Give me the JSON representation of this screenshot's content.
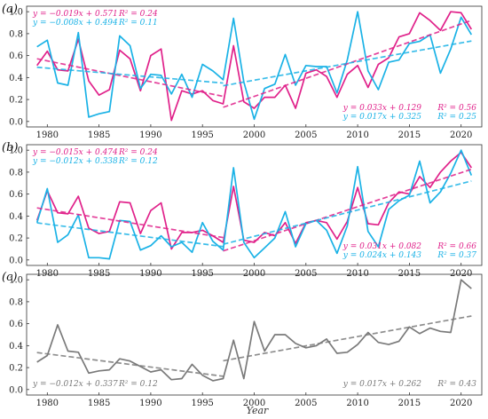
{
  "figure": {
    "xlabel": "Year"
  },
  "chart_data": [
    {
      "type": "line",
      "panel_label": "(a)",
      "xlim": [
        1978,
        2022
      ],
      "ylim": [
        -0.05,
        1.05
      ],
      "x_ticks": [
        1980,
        1985,
        1990,
        1995,
        2000,
        2005,
        2010,
        2015,
        2020
      ],
      "y_ticks": [
        "0.0",
        "0.2",
        "0.4",
        "0.6",
        "0.8",
        "1.0"
      ],
      "x": [
        1979,
        1980,
        1981,
        1982,
        1983,
        1984,
        1985,
        1986,
        1987,
        1988,
        1989,
        1990,
        1991,
        1992,
        1993,
        1994,
        1995,
        1996,
        1997,
        1998,
        1999,
        2000,
        2001,
        2002,
        2003,
        2004,
        2005,
        2006,
        2007,
        2008,
        2009,
        2010,
        2011,
        2012,
        2013,
        2014,
        2015,
        2016,
        2017,
        2018,
        2019,
        2020,
        2021
      ],
      "series": [
        {
          "color": "#e0218a",
          "values": [
            0.51,
            0.64,
            0.47,
            0.46,
            0.75,
            0.37,
            0.24,
            0.29,
            0.65,
            0.57,
            0.28,
            0.6,
            0.66,
            0.01,
            0.28,
            0.25,
            0.28,
            0.19,
            0.16,
            0.69,
            0.18,
            0.12,
            0.22,
            0.22,
            0.33,
            0.12,
            0.44,
            0.47,
            0.41,
            0.22,
            0.43,
            0.51,
            0.31,
            0.52,
            0.58,
            0.77,
            0.8,
            0.99,
            0.92,
            0.83,
            1.0,
            0.99,
            0.84
          ]
        },
        {
          "color": "#1ab2e6",
          "values": [
            0.68,
            0.74,
            0.35,
            0.33,
            0.81,
            0.04,
            0.07,
            0.09,
            0.78,
            0.69,
            0.3,
            0.43,
            0.42,
            0.25,
            0.43,
            0.22,
            0.52,
            0.46,
            0.38,
            0.94,
            0.36,
            0.02,
            0.3,
            0.34,
            0.61,
            0.33,
            0.51,
            0.5,
            0.5,
            0.26,
            0.56,
            1.0,
            0.46,
            0.29,
            0.54,
            0.56,
            0.71,
            0.73,
            0.79,
            0.44,
            0.66,
            0.95,
            0.79
          ]
        }
      ],
      "trends": [
        {
          "x_range": [
            1979,
            1997
          ],
          "series": 0,
          "slope": -0.019,
          "intercept": 0.571,
          "x0": 1979
        },
        {
          "x_range": [
            1979,
            1997
          ],
          "series": 1,
          "slope": -0.008,
          "intercept": 0.494,
          "x0": 1979
        },
        {
          "x_range": [
            1997,
            2021
          ],
          "series": 0,
          "slope": 0.033,
          "intercept": 0.129,
          "x0": 1997
        },
        {
          "x_range": [
            1997,
            2021
          ],
          "series": 1,
          "slope": 0.017,
          "intercept": 0.325,
          "x0": 1997
        }
      ],
      "annotations": [
        {
          "side": "left",
          "row": 0,
          "series": 0,
          "eq": "y = −0.019x + 0.571",
          "r2": "R² = 0.24"
        },
        {
          "side": "left",
          "row": 1,
          "series": 1,
          "eq": "y = −0.008x + 0.494",
          "r2": "R² = 0.11"
        },
        {
          "side": "right",
          "row": 0,
          "series": 0,
          "eq": "y = 0.033x + 0.129",
          "r2": "R² = 0.56"
        },
        {
          "side": "right",
          "row": 1,
          "series": 1,
          "eq": "y = 0.017x + 0.325",
          "r2": "R² = 0.25"
        }
      ]
    },
    {
      "type": "line",
      "panel_label": "(b)",
      "xlim": [
        1978,
        2022
      ],
      "ylim": [
        -0.05,
        1.05
      ],
      "x_ticks": [
        1980,
        1985,
        1990,
        1995,
        2000,
        2005,
        2010,
        2015,
        2020
      ],
      "y_ticks": [
        "0.0",
        "0.2",
        "0.4",
        "0.6",
        "0.8",
        "1.0"
      ],
      "x": [
        1979,
        1980,
        1981,
        1982,
        1983,
        1984,
        1985,
        1986,
        1987,
        1988,
        1989,
        1990,
        1991,
        1992,
        1993,
        1994,
        1995,
        1996,
        1997,
        1998,
        1999,
        2000,
        2001,
        2002,
        2003,
        2004,
        2005,
        2006,
        2007,
        2008,
        2009,
        2010,
        2011,
        2012,
        2013,
        2014,
        2015,
        2016,
        2017,
        2018,
        2019,
        2020,
        2021
      ],
      "series": [
        {
          "color": "#e0218a",
          "values": [
            0.36,
            0.63,
            0.43,
            0.42,
            0.58,
            0.29,
            0.24,
            0.26,
            0.53,
            0.52,
            0.24,
            0.45,
            0.52,
            0.1,
            0.25,
            0.25,
            0.27,
            0.22,
            0.16,
            0.67,
            0.18,
            0.16,
            0.25,
            0.22,
            0.34,
            0.15,
            0.34,
            0.36,
            0.34,
            0.19,
            0.35,
            0.66,
            0.33,
            0.32,
            0.52,
            0.62,
            0.6,
            0.76,
            0.66,
            0.8,
            0.9,
            0.98,
            0.84
          ]
        },
        {
          "color": "#1ab2e6",
          "values": [
            0.34,
            0.65,
            0.16,
            0.23,
            0.41,
            0.02,
            0.02,
            0.01,
            0.36,
            0.35,
            0.09,
            0.13,
            0.22,
            0.12,
            0.16,
            0.07,
            0.34,
            0.17,
            0.09,
            0.84,
            0.16,
            0.02,
            0.11,
            0.2,
            0.44,
            0.12,
            0.33,
            0.36,
            0.27,
            0.06,
            0.31,
            0.85,
            0.26,
            0.12,
            0.46,
            0.54,
            0.59,
            0.9,
            0.52,
            0.62,
            0.79,
            1.0,
            0.77
          ]
        }
      ],
      "trends": [
        {
          "x_range": [
            1979,
            1997
          ],
          "series": 0,
          "slope": -0.015,
          "intercept": 0.474,
          "x0": 1979
        },
        {
          "x_range": [
            1979,
            1997
          ],
          "series": 1,
          "slope": -0.012,
          "intercept": 0.338,
          "x0": 1979
        },
        {
          "x_range": [
            1997,
            2021
          ],
          "series": 0,
          "slope": 0.031,
          "intercept": 0.082,
          "x0": 1997
        },
        {
          "x_range": [
            1997,
            2021
          ],
          "series": 1,
          "slope": 0.024,
          "intercept": 0.143,
          "x0": 1997
        }
      ],
      "annotations": [
        {
          "side": "left",
          "row": 0,
          "series": 0,
          "eq": "y = −0.015x + 0.474",
          "r2": "R² = 0.24"
        },
        {
          "side": "left",
          "row": 1,
          "series": 1,
          "eq": "y = −0.012x + 0.338",
          "r2": "R² = 0.12"
        },
        {
          "side": "right",
          "row": 0,
          "series": 0,
          "eq": "y = 0.031x + 0.082",
          "r2": "R² = 0.66"
        },
        {
          "side": "right",
          "row": 1,
          "series": 1,
          "eq": "y = 0.024x + 0.143",
          "r2": "R² = 0.37"
        }
      ]
    },
    {
      "type": "line",
      "panel_label": "(c)",
      "xlim": [
        1978,
        2022
      ],
      "ylim": [
        -0.05,
        1.05
      ],
      "x_ticks": [
        1980,
        1985,
        1990,
        1995,
        2000,
        2005,
        2010,
        2015,
        2020
      ],
      "y_ticks": [
        "0.0",
        "0.2",
        "0.4",
        "0.6",
        "0.8",
        "1.0"
      ],
      "x": [
        1979,
        1980,
        1981,
        1982,
        1983,
        1984,
        1985,
        1986,
        1987,
        1988,
        1989,
        1990,
        1991,
        1992,
        1993,
        1994,
        1995,
        1996,
        1997,
        1998,
        1999,
        2000,
        2001,
        2002,
        2003,
        2004,
        2005,
        2006,
        2007,
        2008,
        2009,
        2010,
        2011,
        2012,
        2013,
        2014,
        2015,
        2016,
        2017,
        2018,
        2019,
        2020,
        2021
      ],
      "series": [
        {
          "color": "#7a7a7a",
          "values": [
            0.25,
            0.31,
            0.59,
            0.35,
            0.34,
            0.15,
            0.17,
            0.18,
            0.28,
            0.26,
            0.21,
            0.16,
            0.18,
            0.09,
            0.1,
            0.23,
            0.13,
            0.08,
            0.1,
            0.45,
            0.1,
            0.62,
            0.35,
            0.5,
            0.5,
            0.42,
            0.38,
            0.4,
            0.46,
            0.33,
            0.34,
            0.41,
            0.52,
            0.43,
            0.41,
            0.44,
            0.57,
            0.51,
            0.56,
            0.53,
            0.52,
            1.0,
            0.92
          ]
        }
      ],
      "trends": [
        {
          "x_range": [
            1979,
            1997
          ],
          "series": 0,
          "slope": -0.012,
          "intercept": 0.337,
          "x0": 1979
        },
        {
          "x_range": [
            1997,
            2021
          ],
          "series": 0,
          "slope": 0.017,
          "intercept": 0.262,
          "x0": 1997
        }
      ],
      "annotations": [
        {
          "side": "left-bottom",
          "row": 0,
          "series": 0,
          "eq": "y = −0.012x + 0.337",
          "r2": "R² = 0.12"
        },
        {
          "side": "right-bottom",
          "row": 0,
          "series": 0,
          "eq": "y = 0.017x + 0.262",
          "r2": "R² = 0.43"
        }
      ]
    }
  ]
}
